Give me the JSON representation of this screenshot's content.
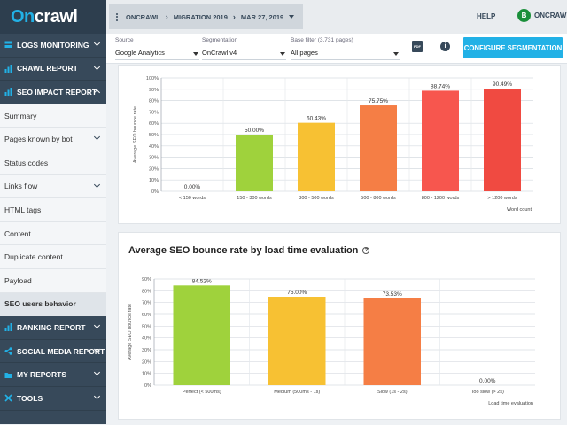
{
  "app": {
    "logo_on": "On",
    "logo_rest": "crawl"
  },
  "sidebar": {
    "items": [
      {
        "label": "LOGS MONITORING",
        "type": "section",
        "icon": "server-icon"
      },
      {
        "label": "CRAWL REPORT",
        "type": "section",
        "icon": "bar-chart-icon"
      },
      {
        "label": "SEO IMPACT REPORT",
        "type": "section",
        "icon": "bar-chart-icon",
        "expanded": true
      },
      {
        "label": "Summary",
        "type": "sub"
      },
      {
        "label": "Pages known by bot",
        "type": "sub",
        "chevron": true
      },
      {
        "label": "Status codes",
        "type": "sub"
      },
      {
        "label": "Links flow",
        "type": "sub",
        "chevron": true
      },
      {
        "label": "HTML tags",
        "type": "sub"
      },
      {
        "label": "Content",
        "type": "sub"
      },
      {
        "label": "Duplicate content",
        "type": "sub"
      },
      {
        "label": "Payload",
        "type": "sub"
      },
      {
        "label": "SEO users behavior",
        "type": "sub",
        "active": true
      },
      {
        "label": "RANKING REPORT",
        "type": "section",
        "icon": "bar-chart-icon"
      },
      {
        "label": "SOCIAL MEDIA REPORT",
        "type": "section",
        "icon": "share-icon"
      },
      {
        "label": "MY REPORTS",
        "type": "section",
        "icon": "folder-icon"
      },
      {
        "label": "TOOLS",
        "type": "section",
        "icon": "tools-icon"
      }
    ]
  },
  "topbar": {
    "breadcrumb": [
      "ONCRAWL",
      "MIGRATION 2019",
      "MAR 27, 2019"
    ],
    "help": "HELP",
    "user": "ONCRAWL",
    "avatar_letter": "B"
  },
  "filters": {
    "source_label": "Source",
    "source_value": "Google Analytics",
    "segmentation_label": "Segmentation",
    "segmentation_value": "OnCrawl v4",
    "base_filter_label": "Base filter (3,731 pages)",
    "base_filter_value": "All pages",
    "pdf_icon_text": "PDF",
    "info_icon_text": "i",
    "configure_button": "CONFIGURE SEGMENTATION"
  },
  "colors": {
    "accent": "#22b1e6",
    "sidebar": "#37495a"
  },
  "chart_data": [
    {
      "type": "bar",
      "title": "",
      "ylabel": "Average SEO bounce rate",
      "xlabel": "Word count",
      "ylim": [
        0,
        100
      ],
      "yticks": [
        "0%",
        "10%",
        "20%",
        "30%",
        "40%",
        "50%",
        "60%",
        "70%",
        "80%",
        "90%",
        "100%"
      ],
      "categories": [
        "< 150 words",
        "150 - 300 words",
        "300 - 500 words",
        "500 - 800 words",
        "800 - 1200 words",
        "> 1200 words"
      ],
      "values": [
        0.0,
        50.0,
        60.43,
        75.75,
        88.74,
        90.49
      ],
      "value_labels": [
        "0.00%",
        "50.00%",
        "60.43%",
        "75.75%",
        "88.74%",
        "90.49%"
      ],
      "colors": [
        "#9fd23c",
        "#9fd23c",
        "#f7c133",
        "#f57e45",
        "#f7564e",
        "#f04a41"
      ]
    },
    {
      "type": "bar",
      "title": "Average SEO bounce rate by load time evaluation",
      "ylabel": "Average SEO bounce rate",
      "xlabel": "Load time evaluation",
      "ylim": [
        0,
        90
      ],
      "yticks": [
        "0%",
        "10%",
        "20%",
        "30%",
        "40%",
        "50%",
        "60%",
        "70%",
        "80%",
        "90%"
      ],
      "categories": [
        "Perfect (< 500ms)",
        "Medium (500ms - 1s)",
        "Slow (1s - 2s)",
        "Too slow (> 2s)"
      ],
      "values": [
        84.52,
        75.0,
        73.53,
        0.0
      ],
      "value_labels": [
        "84.52%",
        "75.00%",
        "73.53%",
        "0.00%"
      ],
      "colors": [
        "#9fd23c",
        "#f7c133",
        "#f57e45",
        "#f04a41"
      ]
    }
  ]
}
